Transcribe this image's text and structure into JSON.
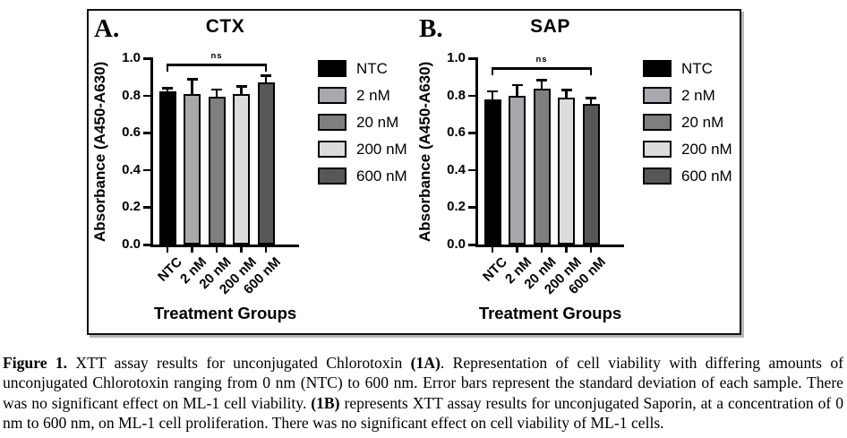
{
  "style": {
    "bar_colors": [
      "#000000",
      "#a9a9ad",
      "#7f7f7f",
      "#dcdcdc",
      "#575757"
    ],
    "bar_border_color": "#000000",
    "axis_color": "#000000",
    "frame_border_color": "#111111",
    "background": "#ffffff"
  },
  "chart_data": [
    {
      "type": "bar",
      "panel_label": "A.",
      "title": "CTX",
      "xlabel": "Treatment Groups",
      "ylabel": "Absorbance (A450-A630)",
      "ylim": [
        0.0,
        1.0
      ],
      "yticks": [
        "0.0",
        "0.2",
        "0.4",
        "0.6",
        "0.8",
        "1.0"
      ],
      "grid": false,
      "legend_position": "right",
      "categories": [
        "NTC",
        "2 nM",
        "20 nM",
        "200 nM",
        "600 nM"
      ],
      "values": [
        0.82,
        0.81,
        0.795,
        0.81,
        0.87
      ],
      "errors": [
        0.013,
        0.07,
        0.03,
        0.033,
        0.03
      ],
      "error_type": "standard deviation (upper)",
      "significance": {
        "label": "ns",
        "from": "NTC",
        "to": "600 nM",
        "bracket_y": 0.97
      }
    },
    {
      "type": "bar",
      "panel_label": "B.",
      "title": "SAP",
      "xlabel": "Treatment Groups",
      "ylabel": "Absorbance (A450-A630)",
      "ylim": [
        0.0,
        1.0
      ],
      "yticks": [
        "0.0",
        "0.2",
        "0.4",
        "0.6",
        "0.8",
        "1.0"
      ],
      "grid": false,
      "legend_position": "right",
      "categories": [
        "NTC",
        "2 nM",
        "20 nM",
        "200 nM",
        "600 nM"
      ],
      "values": [
        0.78,
        0.8,
        0.835,
        0.79,
        0.755
      ],
      "errors": [
        0.035,
        0.05,
        0.04,
        0.032,
        0.026
      ],
      "error_type": "standard deviation (upper)",
      "significance": {
        "label": "ns",
        "from": "NTC",
        "to": "600 nM",
        "bracket_y": 0.95
      }
    }
  ],
  "caption": {
    "segments": [
      {
        "text": "Figure 1.",
        "bold": true
      },
      {
        "text": " XTT assay results for unconjugated Chlorotoxin ",
        "bold": false
      },
      {
        "text": "(1A)",
        "bold": true
      },
      {
        "text": ". Representation of cell viability with differing amounts of unconjugated Chlorotoxin ranging from 0 nm (NTC) to 600 nm. Error bars represent the standard deviation of each sample. There was no significant effect on ML-1 cell viability. ",
        "bold": false
      },
      {
        "text": "(1B)",
        "bold": true
      },
      {
        "text": " represents XTT assay results for unconjugated Saporin, at a concentration of 0 nm to 600 nm, on ML-1 cell proliferation. There was no significant effect on cell viability of ML-1 cells.",
        "bold": false
      }
    ]
  }
}
